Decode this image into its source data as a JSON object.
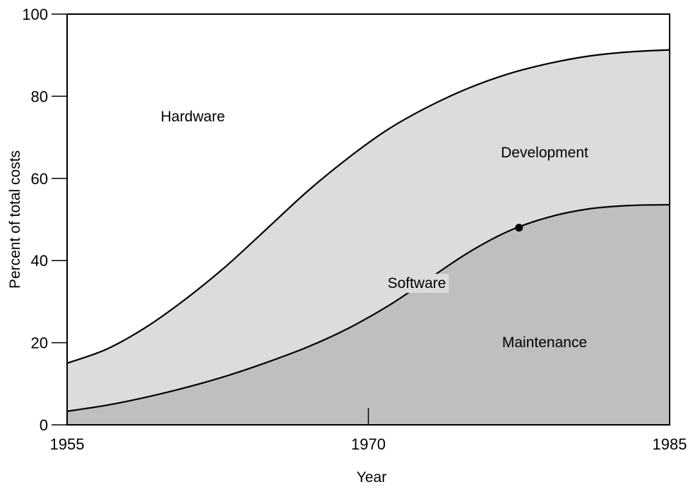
{
  "chart_data": {
    "type": "area",
    "xlabel": "Year",
    "ylabel": "Percent of total costs",
    "xlim": [
      1955,
      1985
    ],
    "ylim": [
      0,
      100
    ],
    "x_ticks": [
      1955,
      1970,
      1985
    ],
    "y_ticks": [
      0,
      20,
      40,
      60,
      80,
      100
    ],
    "grid": false,
    "x": [
      1955,
      1957,
      1959,
      1961,
      1963,
      1965,
      1967,
      1969,
      1971,
      1973,
      1975,
      1977,
      1979,
      1981,
      1983,
      1985
    ],
    "curves": [
      {
        "name": "Software",
        "values": [
          15,
          18.5,
          24,
          31,
          39,
          48,
          57,
          65,
          72,
          77.5,
          82,
          85.5,
          88,
          89.8,
          90.8,
          91.3
        ]
      },
      {
        "name": "Maintenance",
        "values": [
          3.3,
          4.8,
          6.8,
          9.2,
          12,
          15.3,
          19,
          23.5,
          29,
          35.5,
          42,
          47.2,
          50.6,
          52.6,
          53.4,
          53.6
        ]
      }
    ],
    "highlight_point": {
      "x": 1977.5,
      "y": 48
    },
    "region_labels": {
      "hardware": "Hardware",
      "development": "Development",
      "software": "Software",
      "maintenance": "Maintenance"
    },
    "colors": {
      "hardware": "#ffffff",
      "development": "#dcdcdc",
      "maintenance": "#bfbfbf",
      "line": "#000000"
    }
  }
}
